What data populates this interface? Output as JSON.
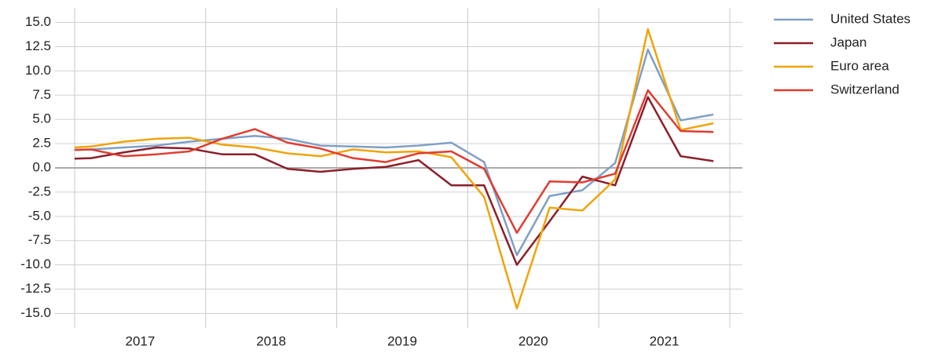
{
  "chart_data": {
    "type": "line",
    "x": [
      2016.875,
      2017.125,
      2017.375,
      2017.625,
      2017.875,
      2018.125,
      2018.375,
      2018.625,
      2018.875,
      2019.125,
      2019.375,
      2019.625,
      2019.875,
      2020.125,
      2020.375,
      2020.625,
      2020.875,
      2021.125,
      2021.375,
      2021.625,
      2021.875
    ],
    "xlim": [
      2017,
      2022
    ],
    "xgrid": [
      2017,
      2018,
      2019,
      2020,
      2021,
      2022
    ],
    "xlabels": [
      {
        "value": 2017.5,
        "label": "2017"
      },
      {
        "value": 2018.5,
        "label": "2018"
      },
      {
        "value": 2019.5,
        "label": "2019"
      },
      {
        "value": 2020.5,
        "label": "2020"
      },
      {
        "value": 2021.5,
        "label": "2021"
      }
    ],
    "ylim": [
      -16.5,
      16.5
    ],
    "yticks": [
      {
        "value": 15,
        "label": "15.0"
      },
      12.5,
      {
        "value": 10,
        "label": "10.0"
      },
      7.5,
      {
        "value": 5,
        "label": "5.0"
      },
      2.5,
      {
        "value": 0,
        "label": "0.0"
      },
      -2.5,
      {
        "value": -5,
        "label": "-5.0"
      },
      -7.5,
      {
        "value": -10,
        "label": "-10.0"
      },
      -12.5,
      {
        "value": -15,
        "label": "-15.0"
      }
    ],
    "grid": true,
    "legend": "top-right",
    "series": [
      {
        "name": "United States",
        "color": "#7f9fc4",
        "values": [
          1.8,
          1.9,
          2.1,
          2.3,
          2.7,
          3.0,
          3.3,
          3.0,
          2.3,
          2.2,
          2.1,
          2.3,
          2.6,
          0.6,
          -9.0,
          -2.9,
          -2.3,
          0.5,
          12.2,
          4.9,
          5.5
        ]
      },
      {
        "name": "Japan",
        "color": "#8b1f2a",
        "values": [
          0.9,
          1.0,
          1.6,
          2.1,
          2.0,
          1.4,
          1.4,
          -0.1,
          -0.4,
          -0.1,
          0.1,
          0.8,
          -1.8,
          -1.8,
          -10.0,
          -5.5,
          -0.9,
          -1.8,
          7.3,
          1.2,
          0.7
        ]
      },
      {
        "name": "Euro area",
        "color": "#f0a30a",
        "values": [
          2.0,
          2.2,
          2.7,
          3.0,
          3.1,
          2.4,
          2.1,
          1.5,
          1.2,
          1.9,
          1.6,
          1.7,
          1.1,
          -3.0,
          -14.5,
          -4.1,
          -4.4,
          -1.2,
          14.3,
          3.9,
          4.6
        ]
      },
      {
        "name": "Switzerland",
        "color": "#e03c31",
        "values": [
          1.8,
          1.9,
          1.2,
          1.4,
          1.7,
          3.0,
          4.0,
          2.6,
          2.0,
          1.0,
          0.6,
          1.5,
          1.7,
          -0.1,
          -6.7,
          -1.4,
          -1.5,
          -0.6,
          8.0,
          3.8,
          3.7
        ]
      }
    ]
  }
}
